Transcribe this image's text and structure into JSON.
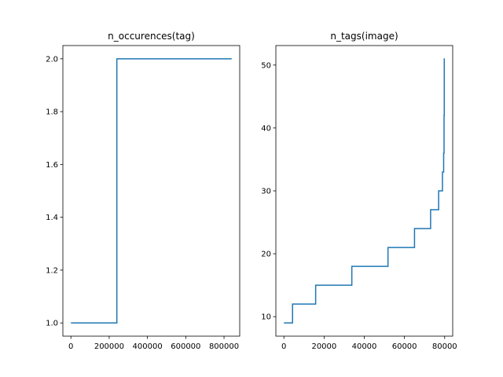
{
  "chart_data": [
    {
      "type": "line",
      "title": "n_occurences(tag)",
      "xlabel": "",
      "ylabel": "",
      "xlim": [
        -42000,
        882000
      ],
      "ylim": [
        0.95,
        2.05
      ],
      "xticks": [
        0,
        200000,
        400000,
        600000,
        800000
      ],
      "xtick_labels": [
        "0",
        "200000",
        "400000",
        "600000",
        "800000"
      ],
      "yticks": [
        1.0,
        1.2,
        1.4,
        1.6,
        1.8,
        2.0
      ],
      "ytick_labels": [
        "1.0",
        "1.2",
        "1.4",
        "1.6",
        "1.8",
        "2.0"
      ],
      "grid": false,
      "series": [
        {
          "color": "#1f77b4",
          "x": [
            0,
            240000,
            240000,
            840000
          ],
          "y": [
            1,
            1,
            2,
            2
          ]
        }
      ]
    },
    {
      "type": "line",
      "title": "n_tags(image)",
      "xlabel": "",
      "ylabel": "",
      "xlim": [
        -4000,
        84000
      ],
      "ylim": [
        6.9,
        53.1
      ],
      "xticks": [
        0,
        20000,
        40000,
        60000,
        80000
      ],
      "xtick_labels": [
        "0",
        "20000",
        "40000",
        "60000",
        "80000"
      ],
      "yticks": [
        10,
        20,
        30,
        40,
        50
      ],
      "ytick_labels": [
        "10",
        "20",
        "30",
        "40",
        "50"
      ],
      "grid": false,
      "series": [
        {
          "color": "#1f77b4",
          "x": [
            0,
            4300,
            4300,
            15800,
            15800,
            33800,
            33800,
            51800,
            51800,
            65000,
            65000,
            73000,
            73000,
            77000,
            77000,
            78900,
            78900,
            79500,
            79500,
            79700,
            79700,
            79800,
            79800,
            79950
          ],
          "y": [
            9,
            9,
            12,
            12,
            15,
            15,
            18,
            18,
            21,
            21,
            24,
            24,
            27,
            27,
            30,
            30,
            33,
            33,
            36,
            36,
            42,
            42,
            51,
            51
          ]
        }
      ]
    }
  ]
}
